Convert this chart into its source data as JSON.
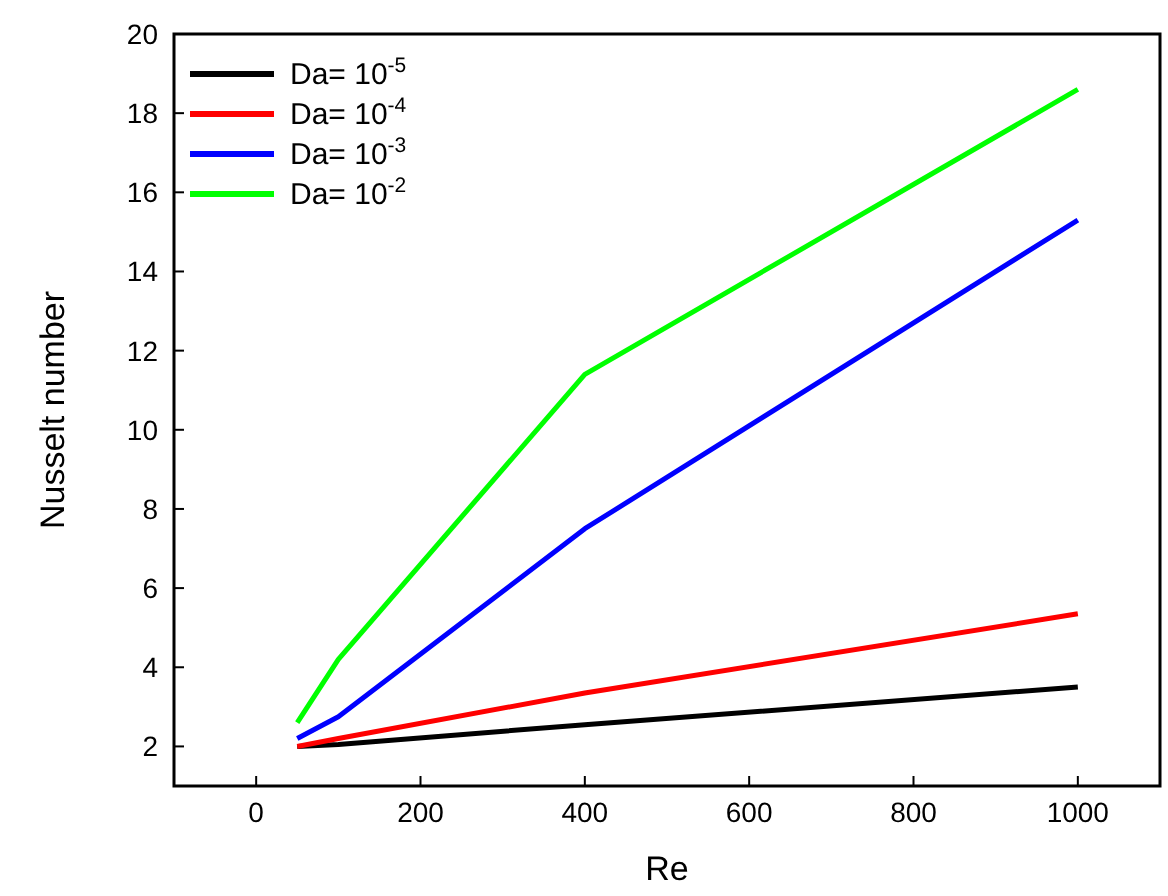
{
  "chart_data": {
    "type": "line",
    "xlabel": "Re",
    "ylabel": "Nusselt number",
    "x": [
      50,
      100,
      400,
      1000
    ],
    "xlim": [
      -100,
      1100
    ],
    "xticks": [
      0,
      200,
      400,
      600,
      800,
      1000
    ],
    "ylim": [
      1,
      20
    ],
    "yticks": [
      2,
      4,
      6,
      8,
      10,
      12,
      14,
      16,
      18,
      20
    ],
    "grid": false,
    "legend": "top left",
    "marker": "none",
    "line_style": "solid",
    "series": [
      {
        "name": "Da= 10$^{-5}$",
        "color": "#000000",
        "values": [
          2.0,
          2.05,
          2.55,
          3.5
        ]
      },
      {
        "name": "Da= 10$^{-4}$",
        "color": "#ff0000",
        "values": [
          2.0,
          2.2,
          3.35,
          5.35
        ]
      },
      {
        "name": "Da= 10$^{-3}$",
        "color": "#0000ff",
        "values": [
          2.2,
          2.75,
          7.5,
          15.3
        ]
      },
      {
        "name": "Da= 10$^{-2}$",
        "color": "#00ff00",
        "values": [
          2.6,
          4.2,
          11.4,
          18.6
        ]
      }
    ]
  }
}
